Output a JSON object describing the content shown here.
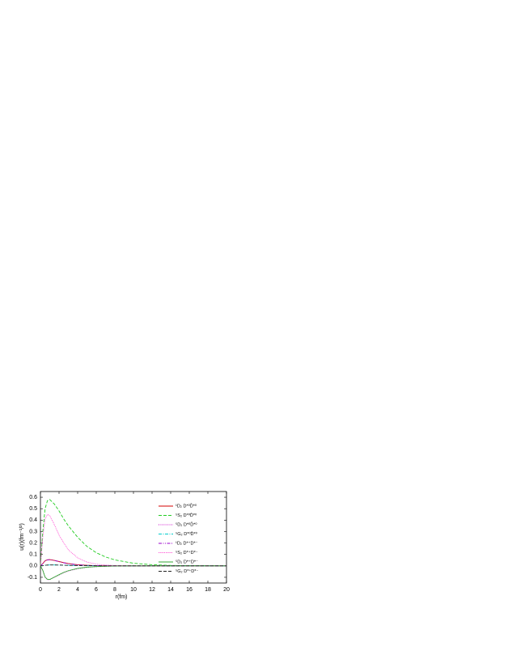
{
  "chart_data": {
    "type": "line",
    "x_label": "r(fm)",
    "y_label": "u(r)(fm⁻¹/²)",
    "x": [
      0,
      0.25,
      0.5,
      0.75,
      1,
      1.5,
      2,
      2.5,
      3,
      4,
      5,
      6,
      7,
      8,
      10,
      12,
      14,
      16,
      18,
      20
    ],
    "series": [
      {
        "name": "¹D₂ D*⁰D̄*⁰",
        "color": "#d40000",
        "linestyle": "solid",
        "values": [
          0,
          0.02,
          0.045,
          0.053,
          0.055,
          0.048,
          0.038,
          0.028,
          0.02,
          0.01,
          0.005,
          0.002,
          0.001,
          0,
          0,
          0,
          0,
          0,
          0,
          0
        ]
      },
      {
        "name": "⁵S₂ D*⁰D̄*⁰",
        "color": "#22cc22",
        "linestyle": "dashed",
        "values": [
          0,
          0.3,
          0.5,
          0.57,
          0.58,
          0.54,
          0.48,
          0.41,
          0.35,
          0.25,
          0.17,
          0.115,
          0.078,
          0.052,
          0.023,
          0.01,
          0.004,
          0.002,
          0.001,
          0
        ]
      },
      {
        "name": "⁵D₂ D*⁰D̄*⁰",
        "color": "#cc00cc",
        "linestyle": "dotted",
        "values": [
          0,
          -0.04,
          -0.1,
          -0.12,
          -0.12,
          -0.1,
          -0.08,
          -0.06,
          -0.045,
          -0.025,
          -0.013,
          -0.007,
          -0.004,
          -0.002,
          -0.001,
          0,
          0,
          0,
          0,
          0
        ]
      },
      {
        "name": "⁵G₂ D*⁰D̄*⁰",
        "color": "#00cccc",
        "linestyle": "dashdot",
        "values": [
          0,
          0.002,
          0.005,
          0.007,
          0.008,
          0.008,
          0.007,
          0.006,
          0.005,
          0.003,
          0.002,
          0.001,
          0,
          0,
          0,
          0,
          0,
          0,
          0,
          0
        ]
      },
      {
        "name": "¹D₂ D*⁺D*⁻",
        "color": "#9900cc",
        "linestyle": "dashdotdot",
        "values": [
          0,
          0.019,
          0.044,
          0.052,
          0.054,
          0.047,
          0.037,
          0.027,
          0.019,
          0.009,
          0.004,
          0.002,
          0.001,
          0,
          0,
          0,
          0,
          0,
          0,
          0
        ]
      },
      {
        "name": "⁵S₂ D*⁺D*⁻",
        "color": "#ff33cc",
        "linestyle": "shortdot",
        "values": [
          0,
          0.25,
          0.41,
          0.45,
          0.44,
          0.36,
          0.27,
          0.2,
          0.14,
          0.07,
          0.033,
          0.015,
          0.007,
          0.003,
          0.001,
          0,
          0,
          0,
          0,
          0
        ]
      },
      {
        "name": "⁵D₂ D*⁺D*⁻",
        "color": "#33aa33",
        "linestyle": "solid",
        "values": [
          0,
          -0.038,
          -0.098,
          -0.118,
          -0.119,
          -0.098,
          -0.077,
          -0.057,
          -0.042,
          -0.022,
          -0.011,
          -0.006,
          -0.003,
          -0.001,
          0,
          0,
          0,
          0,
          0,
          0
        ]
      },
      {
        "name": "⁵G₂ D*⁺D*⁻",
        "color": "#222222",
        "linestyle": "dashed",
        "values": [
          0,
          0.002,
          0.005,
          0.007,
          0.008,
          0.008,
          0.007,
          0.006,
          0.004,
          0.003,
          0.002,
          0.001,
          0,
          0,
          0,
          0,
          0,
          0,
          0,
          0
        ]
      }
    ],
    "xlim": [
      0,
      20
    ],
    "xticks": [
      0,
      2,
      4,
      6,
      8,
      10,
      12,
      14,
      16,
      18,
      20
    ],
    "ylim": [
      -0.15,
      0.65
    ],
    "yticks": [
      -0.1,
      0.0,
      0.1,
      0.2,
      0.3,
      0.4,
      0.5,
      0.6
    ],
    "legend": "upper right"
  }
}
